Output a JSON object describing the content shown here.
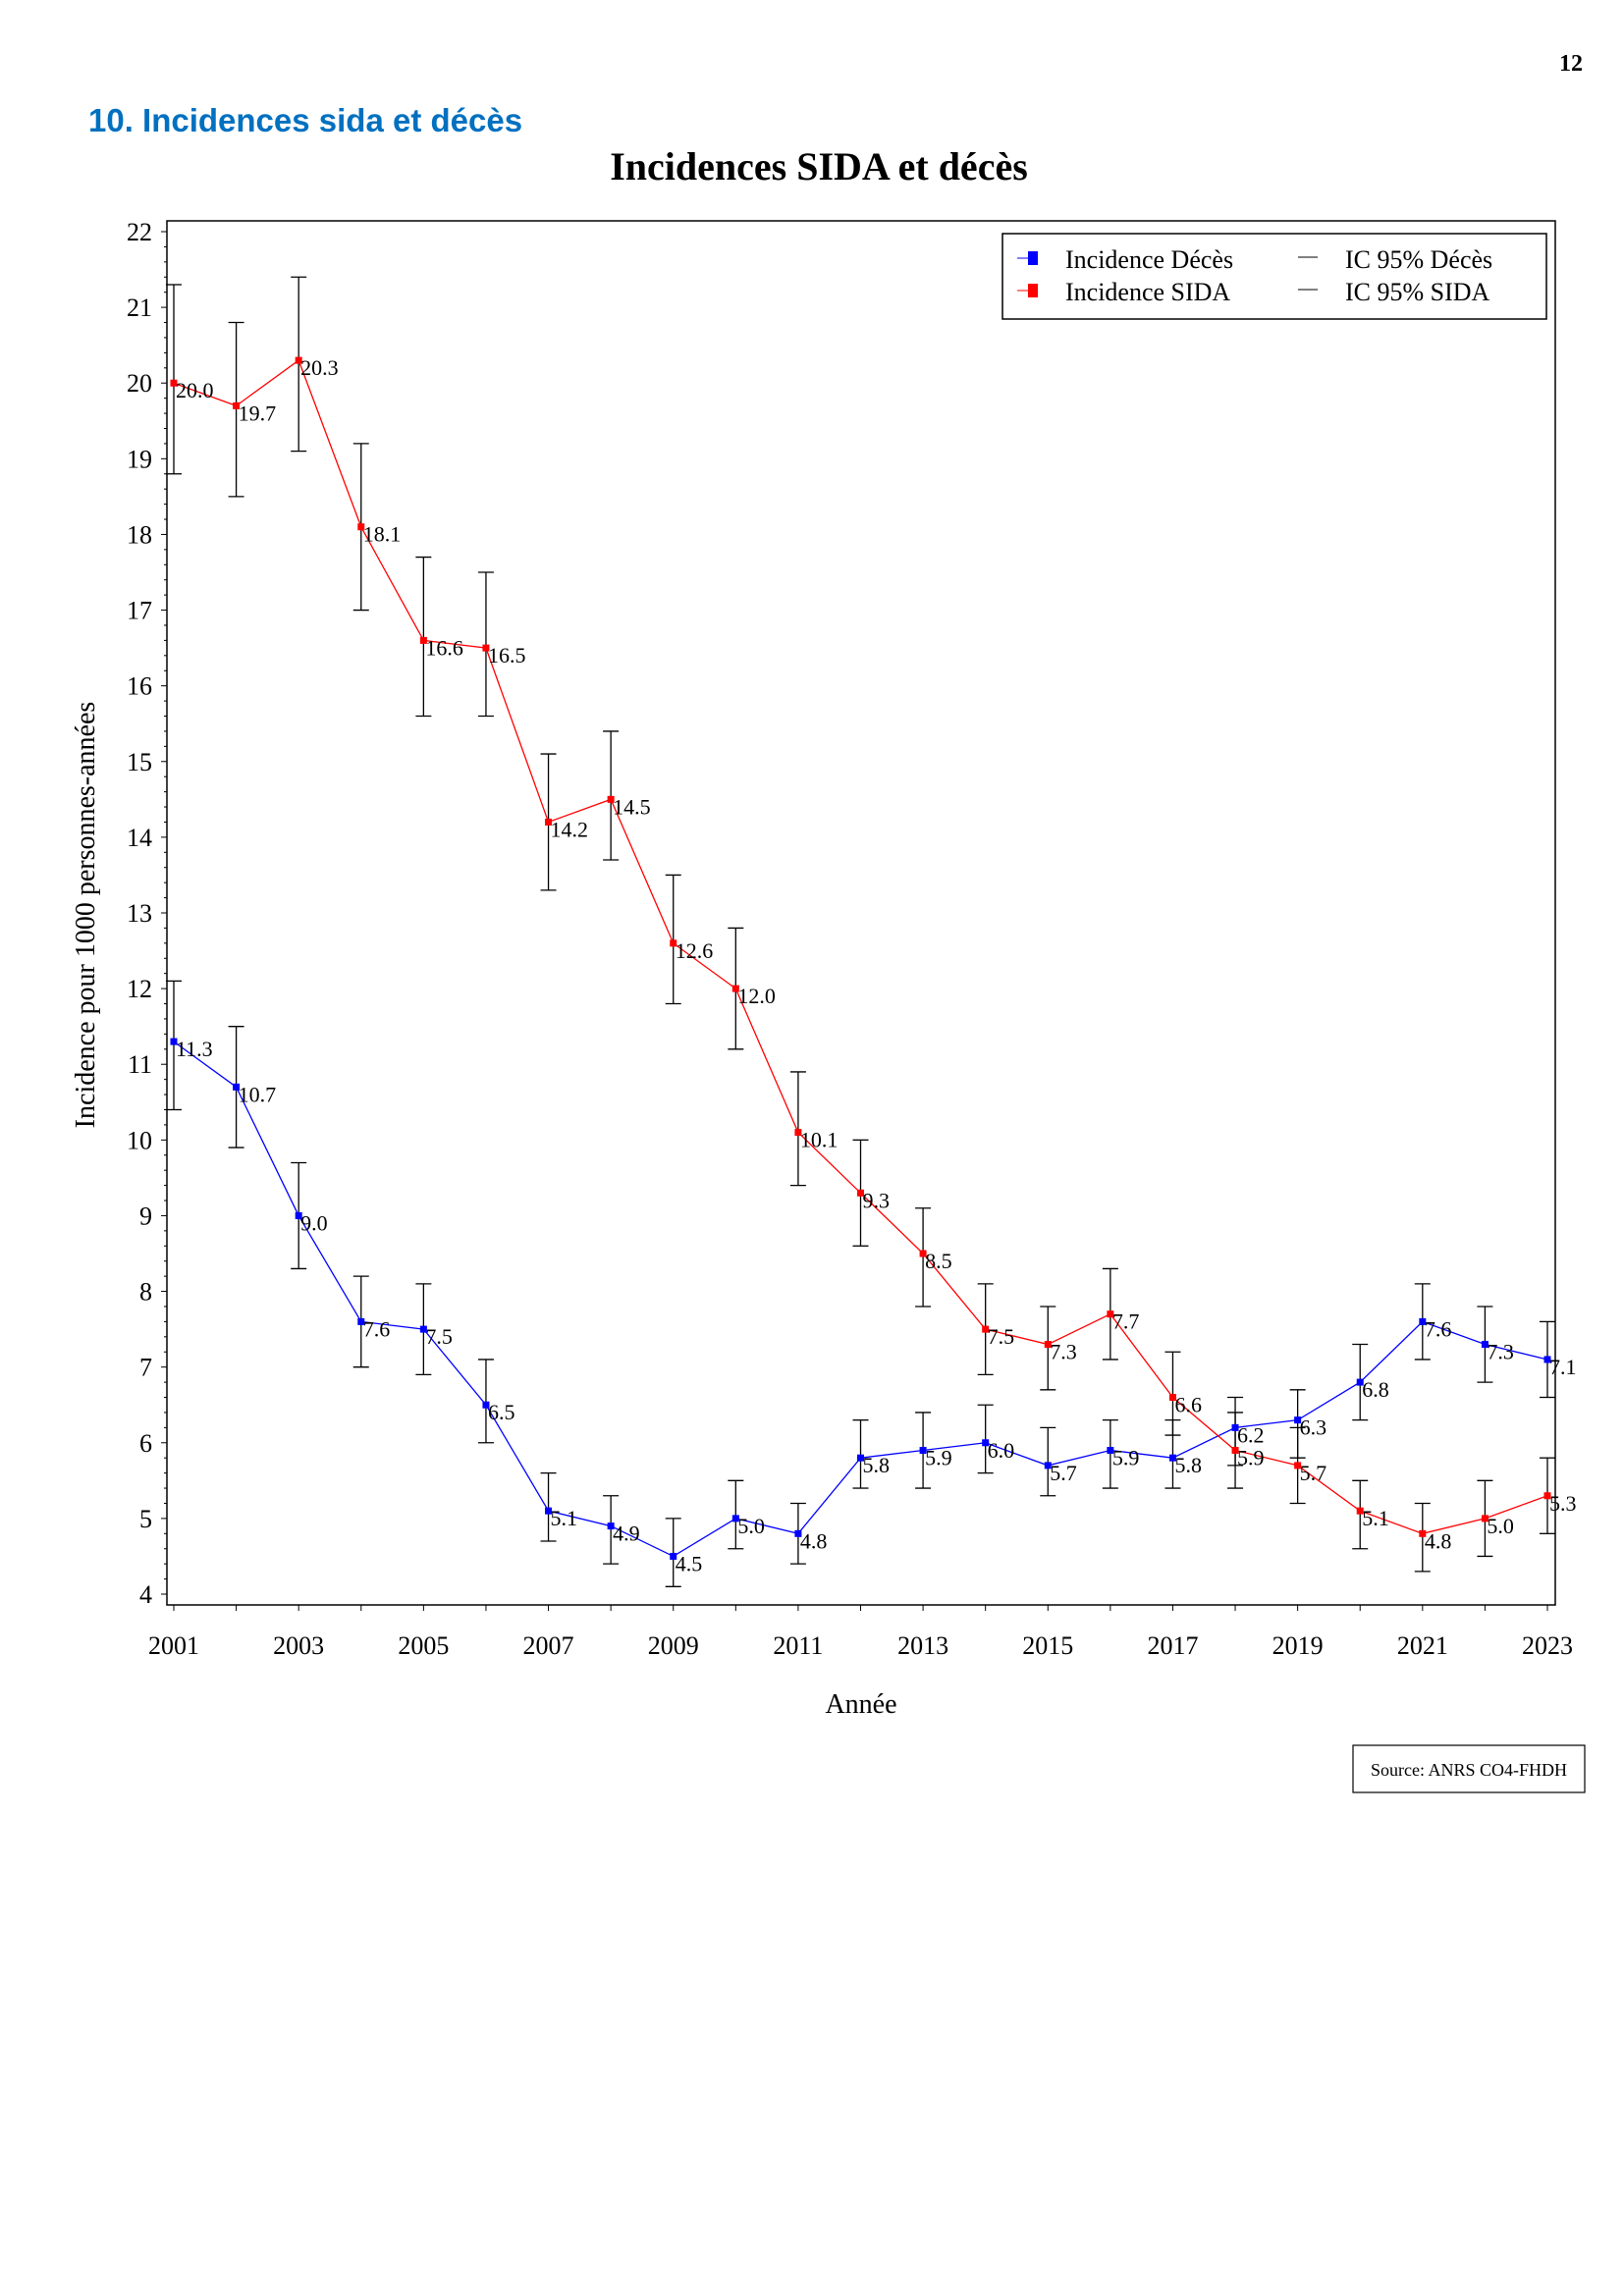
{
  "page_number": "12",
  "section_heading": "10. Incidences sida et décès",
  "chart_data": {
    "type": "line",
    "title": "Incidences SIDA et décès",
    "xlabel": "Année",
    "ylabel": "Incidence pour 1000 personnes-années",
    "xlim": [
      2001,
      2023
    ],
    "ylim": [
      4,
      22
    ],
    "x_ticks": [
      "2001",
      "2003",
      "2005",
      "2007",
      "2009",
      "2011",
      "2013",
      "2015",
      "2017",
      "2019",
      "2021",
      "2023"
    ],
    "y_ticks": [
      "4",
      "5",
      "6",
      "7",
      "8",
      "9",
      "10",
      "11",
      "12",
      "13",
      "14",
      "15",
      "16",
      "17",
      "18",
      "19",
      "20",
      "21",
      "22"
    ],
    "grid": false,
    "legend_position": "top-right",
    "legend": [
      "Incidence Décès",
      "Incidence SIDA",
      "IC 95% Décès",
      "IC 95% SIDA"
    ],
    "x": [
      2001,
      2002,
      2003,
      2004,
      2005,
      2006,
      2007,
      2008,
      2009,
      2010,
      2011,
      2012,
      2013,
      2014,
      2015,
      2016,
      2017,
      2018,
      2019,
      2020,
      2021,
      2022,
      2023
    ],
    "series": [
      {
        "name": "Incidence Décès",
        "color": "#0000FF",
        "values": [
          11.3,
          10.7,
          9.0,
          7.6,
          7.5,
          6.5,
          5.1,
          4.9,
          4.5,
          5.0,
          4.8,
          5.8,
          5.9,
          6.0,
          5.7,
          5.9,
          5.8,
          6.2,
          6.3,
          6.8,
          7.6,
          7.3,
          7.1
        ],
        "labels": [
          "11.3",
          "10.7",
          "9.0",
          "7.6",
          "7.5",
          "6.5",
          "5.1",
          "4.9",
          "4.5",
          "5.0",
          "4.8",
          "5.8",
          "5.9",
          "6.0",
          "5.7",
          "5.9",
          "5.8",
          "6.2",
          "6.3",
          "6.8",
          "7.6",
          "7.3",
          "7.1"
        ],
        "ci_lower": [
          10.4,
          9.9,
          8.3,
          7.0,
          6.9,
          6.0,
          4.7,
          4.4,
          4.1,
          4.6,
          4.4,
          5.4,
          5.4,
          5.6,
          5.3,
          5.4,
          5.4,
          5.7,
          5.8,
          6.3,
          7.1,
          6.8,
          6.6
        ],
        "ci_upper": [
          12.1,
          11.5,
          9.7,
          8.2,
          8.1,
          7.1,
          5.6,
          5.3,
          5.0,
          5.5,
          5.2,
          6.3,
          6.4,
          6.5,
          6.2,
          6.3,
          6.3,
          6.6,
          6.7,
          7.3,
          8.1,
          7.8,
          7.6
        ]
      },
      {
        "name": "Incidence SIDA",
        "color": "#FF0000",
        "values": [
          20.0,
          19.7,
          20.3,
          18.1,
          16.6,
          16.5,
          14.2,
          14.5,
          12.6,
          12.0,
          10.1,
          9.3,
          8.5,
          7.5,
          7.3,
          7.7,
          6.6,
          5.9,
          5.7,
          5.1,
          4.8,
          5.0,
          5.3
        ],
        "labels": [
          "20.0",
          "19.7",
          "20.3",
          "18.1",
          "16.6",
          "16.5",
          "14.2",
          "14.5",
          "12.6",
          "12.0",
          "10.1",
          "9.3",
          "8.5",
          "7.5",
          "7.3",
          "7.7",
          "6.6",
          "5.9",
          "5.7",
          "5.1",
          "4.8",
          "5.0",
          "5.3"
        ],
        "ci_lower": [
          18.8,
          18.5,
          19.1,
          17.0,
          15.6,
          15.6,
          13.3,
          13.7,
          11.8,
          11.2,
          9.4,
          8.6,
          7.8,
          6.9,
          6.7,
          7.1,
          6.1,
          5.4,
          5.2,
          4.6,
          4.3,
          4.5,
          4.8
        ],
        "ci_upper": [
          21.3,
          20.8,
          21.4,
          19.2,
          17.7,
          17.5,
          15.1,
          15.4,
          13.5,
          12.8,
          10.9,
          10.0,
          9.1,
          8.1,
          7.8,
          8.3,
          7.2,
          6.4,
          6.2,
          5.5,
          5.2,
          5.5,
          5.8
        ]
      }
    ],
    "source": "Source: ANRS CO4-FHDH"
  }
}
